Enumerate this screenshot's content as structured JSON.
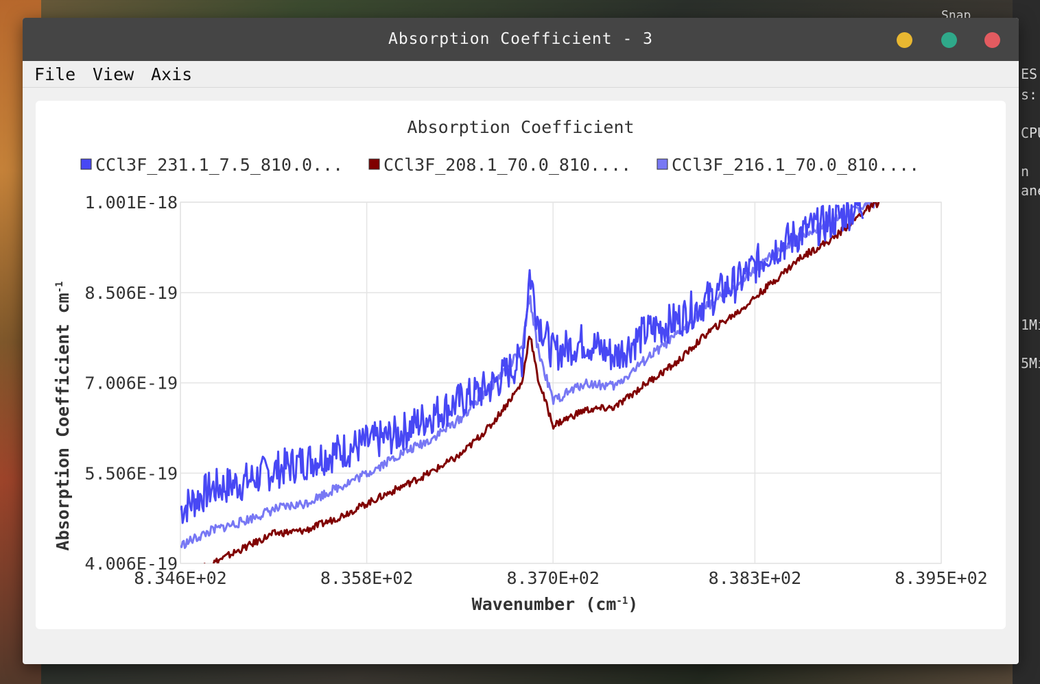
{
  "window": {
    "title": "Absorption Coefficient - 3",
    "controls": {
      "minimize_color": "#e8b731",
      "maximize_color": "#2fa98a",
      "close_color": "#e35b60"
    }
  },
  "menu": {
    "file": "File",
    "view": "View",
    "axis": "Axis"
  },
  "background_fragments": [
    "Snap",
    "ES",
    "s:",
    "CPU",
    "n",
    "ane",
    "1Mi",
    "5Mi"
  ],
  "chart_data": {
    "type": "line",
    "title": "Absorption Coefficient",
    "xlabel": "Wavenumber (cm",
    "xlabel_sup": "-1",
    "xlabel_end": ")",
    "ylabel": "Absorption Coefficient cm",
    "ylabel_sup": "-1",
    "xlim": [
      834.6,
      839.5
    ],
    "ylim": [
      4.006e-19,
      1.001e-18
    ],
    "x_ticks": [
      {
        "value": 834.6,
        "label": "8.346E+02"
      },
      {
        "value": 835.8,
        "label": "8.358E+02"
      },
      {
        "value": 837.0,
        "label": "8.370E+02"
      },
      {
        "value": 838.3,
        "label": "8.383E+02"
      },
      {
        "value": 839.5,
        "label": "8.395E+02"
      }
    ],
    "y_ticks": [
      {
        "value": 4.006e-19,
        "label": "4.006E-19"
      },
      {
        "value": 5.506e-19,
        "label": "5.506E-19"
      },
      {
        "value": 7.006e-19,
        "label": "7.006E-19"
      },
      {
        "value": 8.506e-19,
        "label": "8.506E-19"
      },
      {
        "value": 1.001e-18,
        "label": "1.001E-18"
      }
    ],
    "grid": true,
    "legend_position": "top",
    "series": [
      {
        "name": "CCl3F_231.1_7.5_810.0...",
        "color": "#4848f4",
        "x": [
          834.6,
          834.8,
          835.0,
          835.2,
          835.4,
          835.6,
          835.8,
          836.0,
          836.2,
          836.4,
          836.6,
          836.8,
          836.85,
          836.9,
          837.0,
          837.2,
          837.4,
          837.6,
          837.8,
          838.0,
          838.2,
          838.4,
          838.6,
          838.8,
          839.0
        ],
        "values": [
          4.9e-19,
          5.25e-19,
          5.35e-19,
          5.55e-19,
          5.7e-19,
          5.85e-19,
          6e-19,
          6.15e-19,
          6.45e-19,
          6.7e-19,
          6.95e-19,
          7.4e-19,
          8.85e-19,
          8.1e-19,
          7.5e-19,
          7.7e-19,
          7.45e-19,
          7.85e-19,
          8.05e-19,
          8.4e-19,
          8.7e-19,
          9.2e-19,
          9.5e-19,
          9.7e-19,
          1e-18
        ]
      },
      {
        "name": "CCl3F_208.1_70.0_810....",
        "color": "#800000",
        "x": [
          834.6,
          834.8,
          835.0,
          835.2,
          835.4,
          835.6,
          835.8,
          836.0,
          836.2,
          836.4,
          836.6,
          836.8,
          836.85,
          836.9,
          837.0,
          837.2,
          837.4,
          837.6,
          837.8,
          838.0,
          838.2,
          838.4,
          838.6,
          838.8,
          839.0,
          839.1
        ],
        "values": [
          3.85e-19,
          4e-19,
          4.25e-19,
          4.5e-19,
          4.55e-19,
          4.75e-19,
          5e-19,
          5.25e-19,
          5.5e-19,
          5.8e-19,
          6.3e-19,
          7e-19,
          7.85e-19,
          7.1e-19,
          6.3e-19,
          6.55e-19,
          6.6e-19,
          7e-19,
          7.35e-19,
          7.85e-19,
          8.2e-19,
          8.65e-19,
          9.1e-19,
          9.4e-19,
          9.85e-19,
          1.001e-18
        ]
      },
      {
        "name": "CCl3F_216.1_70.0_810....",
        "color": "#7878f4",
        "x": [
          834.6,
          834.8,
          835.0,
          835.2,
          835.4,
          835.6,
          835.8,
          836.0,
          836.2,
          836.4,
          836.6,
          836.8,
          836.85,
          836.9,
          837.0,
          837.2,
          837.4,
          837.6,
          837.8,
          838.0,
          838.2,
          838.4,
          838.6,
          838.8,
          839.0,
          839.1
        ],
        "values": [
          4.3e-19,
          4.55e-19,
          4.7e-19,
          4.9e-19,
          5e-19,
          5.25e-19,
          5.5e-19,
          5.8e-19,
          6.05e-19,
          6.4e-19,
          6.95e-19,
          7.55e-19,
          8.45e-19,
          7.6e-19,
          6.7e-19,
          7e-19,
          6.95e-19,
          7.4e-19,
          7.8e-19,
          8.3e-19,
          8.65e-19,
          9.1e-19,
          9.45e-19,
          9.7e-19,
          9.95e-19,
          1.001e-18
        ]
      }
    ]
  }
}
